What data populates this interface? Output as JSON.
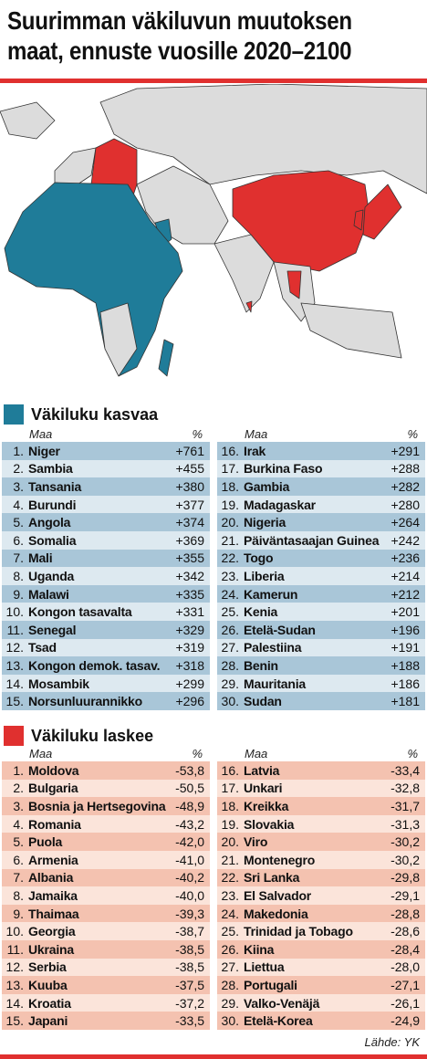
{
  "header": {
    "title_lines": [
      "Suurimman väkiluvun muutoksen",
      "maat, ennuste vuosille 2020–2100"
    ]
  },
  "sections": [
    {
      "title": "Väkiluku kasvaa",
      "tables": [
        {
          "columns": [
            "Maa",
            "%"
          ],
          "rows": [
            [
              "1.",
              "Niger",
              "+761"
            ],
            [
              "2.",
              "Sambia",
              "+455"
            ],
            [
              "3.",
              "Tansania",
              "+380"
            ],
            [
              "4.",
              "Burundi",
              "+377"
            ],
            [
              "5.",
              "Angola",
              "+374"
            ],
            [
              "6.",
              "Somalia",
              "+369"
            ],
            [
              "7.",
              "Mali",
              "+355"
            ],
            [
              "8.",
              "Uganda",
              "+342"
            ],
            [
              "9.",
              "Malawi",
              "+335"
            ],
            [
              "10.",
              "Kongon tasavalta",
              "+331"
            ],
            [
              "11.",
              "Senegal",
              "+329"
            ],
            [
              "12.",
              "Tsad",
              "+319"
            ],
            [
              "13.",
              "Kongon demok. tasav.",
              "+318"
            ],
            [
              "14.",
              "Mosambik",
              "+299"
            ],
            [
              "15.",
              "Norsunluurannikko",
              "+296"
            ]
          ]
        },
        {
          "columns": [
            "Maa",
            "%"
          ],
          "rows": [
            [
              "16.",
              "Irak",
              "+291"
            ],
            [
              "17.",
              "Burkina Faso",
              "+288"
            ],
            [
              "18.",
              "Gambia",
              "+282"
            ],
            [
              "19.",
              "Madagaskar",
              "+280"
            ],
            [
              "20.",
              "Nigeria",
              "+264"
            ],
            [
              "21.",
              "Päiväntasaajan Guinea",
              "+242"
            ],
            [
              "22.",
              "Togo",
              "+236"
            ],
            [
              "23.",
              "Liberia",
              "+214"
            ],
            [
              "24.",
              "Kamerun",
              "+212"
            ],
            [
              "25.",
              "Kenia",
              "+201"
            ],
            [
              "26.",
              "Etelä-Sudan",
              "+196"
            ],
            [
              "27.",
              "Palestiina",
              "+191"
            ],
            [
              "28.",
              "Benin",
              "+188"
            ],
            [
              "29.",
              "Mauritania",
              "+186"
            ],
            [
              "30.",
              "Sudan",
              "+181"
            ]
          ]
        }
      ]
    },
    {
      "title": "Väkiluku laskee",
      "tables": [
        {
          "columns": [
            "Maa",
            "%"
          ],
          "rows": [
            [
              "1.",
              "Moldova",
              "-53,8"
            ],
            [
              "2.",
              "Bulgaria",
              "-50,5"
            ],
            [
              "3.",
              "Bosnia ja Hertsegovina",
              "-48,9"
            ],
            [
              "4.",
              "Romania",
              "-43,2"
            ],
            [
              "5.",
              "Puola",
              "-42,0"
            ],
            [
              "6.",
              "Armenia",
              "-41,0"
            ],
            [
              "7.",
              "Albania",
              "-40,2"
            ],
            [
              "8.",
              "Jamaika",
              "-40,0"
            ],
            [
              "9.",
              "Thaimaa",
              "-39,3"
            ],
            [
              "10.",
              "Georgia",
              "-38,7"
            ],
            [
              "11.",
              "Ukraina",
              "-38,5"
            ],
            [
              "12.",
              "Serbia",
              "-38,5"
            ],
            [
              "13.",
              "Kuuba",
              "-37,5"
            ],
            [
              "14.",
              "Kroatia",
              "-37,2"
            ],
            [
              "15.",
              "Japani",
              "-33,5"
            ]
          ]
        },
        {
          "columns": [
            "Maa",
            "%"
          ],
          "rows": [
            [
              "16.",
              "Latvia",
              "-33,4"
            ],
            [
              "17.",
              "Unkari",
              "-32,8"
            ],
            [
              "18.",
              "Kreikka",
              "-31,7"
            ],
            [
              "19.",
              "Slovakia",
              "-31,3"
            ],
            [
              "20.",
              "Viro",
              "-30,2"
            ],
            [
              "21.",
              "Montenegro",
              "-30,2"
            ],
            [
              "22.",
              "Sri Lanka",
              "-29,8"
            ],
            [
              "23.",
              "El Salvador",
              "-29,1"
            ],
            [
              "24.",
              "Makedonia",
              "-28,8"
            ],
            [
              "25.",
              "Trinidad ja Tobago",
              "-28,6"
            ],
            [
              "26.",
              "Kiina",
              "-28,4"
            ],
            [
              "27.",
              "Liettua",
              "-28,0"
            ],
            [
              "28.",
              "Portugali",
              "-27,1"
            ],
            [
              "29.",
              "Valko-Venäjä",
              "-26,1"
            ],
            [
              "30.",
              "Etelä-Korea",
              "-24,9"
            ]
          ]
        }
      ]
    }
  ],
  "source": "Lähde: YK"
}
